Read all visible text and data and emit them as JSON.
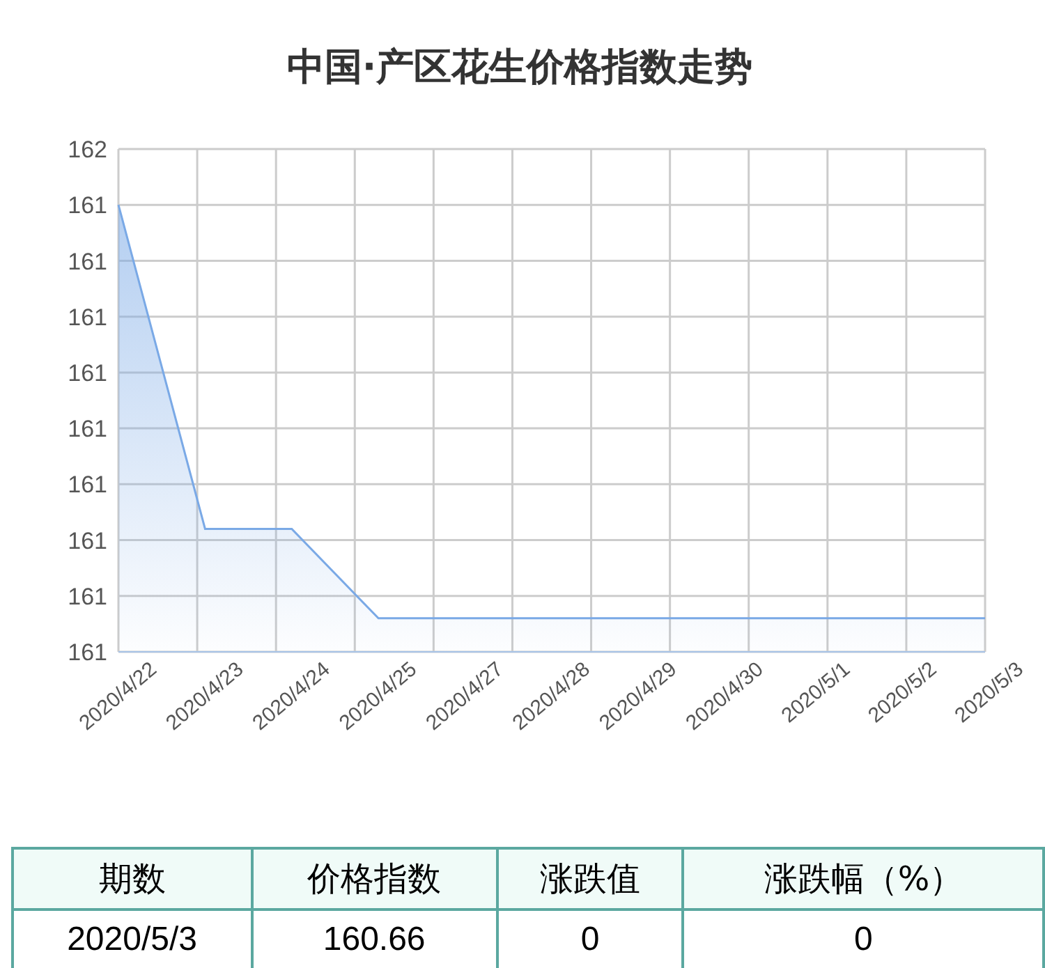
{
  "chart_data": {
    "type": "area",
    "title": "中国·产区花生价格指数走势",
    "categories": [
      "2020/4/22",
      "2020/4/23",
      "2020/4/24",
      "2020/4/25",
      "2020/4/27",
      "2020/4/28",
      "2020/4/29",
      "2020/4/30",
      "2020/5/1",
      "2020/5/2",
      "2020/5/3"
    ],
    "series": [
      {
        "color": "#7aa9e6",
        "values": [
          161.4,
          160.82,
          160.82,
          160.66,
          160.66,
          160.66,
          160.66,
          160.66,
          160.66,
          160.66,
          160.66
        ]
      }
    ],
    "ylim": [
      160.6,
      161.5
    ],
    "yticks": [
      {
        "value": 160.6,
        "label": "161"
      },
      {
        "value": 160.7,
        "label": "161"
      },
      {
        "value": 160.8,
        "label": "161"
      },
      {
        "value": 160.9,
        "label": "161"
      },
      {
        "value": 161.0,
        "label": "161"
      },
      {
        "value": 161.1,
        "label": "161"
      },
      {
        "value": 161.2,
        "label": "161"
      },
      {
        "value": 161.3,
        "label": "161"
      },
      {
        "value": 161.4,
        "label": "161"
      },
      {
        "value": 161.5,
        "label": "162"
      }
    ],
    "grid": true,
    "annotations": [
      "期数",
      "价格指数",
      "涨跌值",
      "涨跌幅（%）",
      "2020/5/3",
      "160.66",
      "0",
      "0"
    ]
  }
}
